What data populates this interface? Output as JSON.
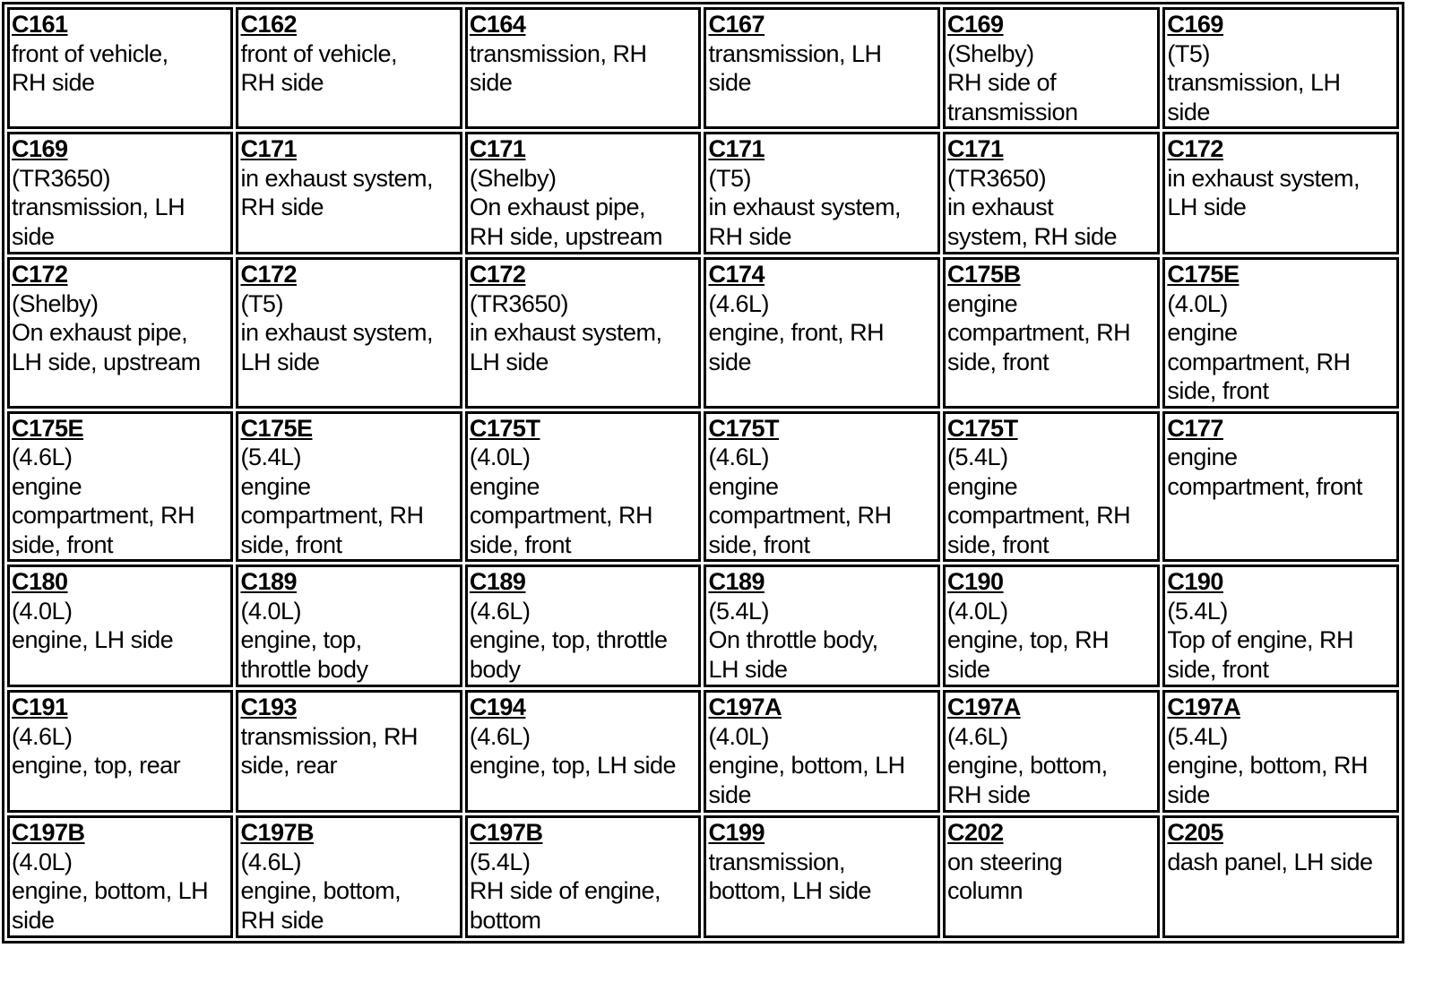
{
  "rows": [
    [
      {
        "code": "C161",
        "lines": [
          "front of vehicle,",
          "RH side"
        ]
      },
      {
        "code": "C162",
        "lines": [
          "front of vehicle,",
          "RH side"
        ]
      },
      {
        "code": "C164",
        "lines": [
          "transmission, RH",
          "side"
        ]
      },
      {
        "code": "C167",
        "lines": [
          "transmission, LH",
          "side"
        ]
      },
      {
        "code": "C169",
        "lines": [
          "(Shelby)",
          "RH side of",
          "transmission"
        ]
      },
      {
        "code": "C169",
        "lines": [
          "(T5)",
          "transmission, LH",
          "side"
        ]
      }
    ],
    [
      {
        "code": "C169",
        "lines": [
          "(TR3650)",
          "transmission, LH",
          "side"
        ]
      },
      {
        "code": "C171",
        "lines": [
          "in exhaust system,",
          "RH side"
        ]
      },
      {
        "code": "C171",
        "lines": [
          "(Shelby)",
          "On exhaust pipe,",
          "RH side, upstream"
        ]
      },
      {
        "code": "C171",
        "lines": [
          "(T5)",
          "in exhaust system,",
          "RH side"
        ]
      },
      {
        "code": "C171",
        "lines": [
          "(TR3650)",
          "in exhaust",
          "system, RH side"
        ]
      },
      {
        "code": "C172",
        "lines": [
          "in exhaust system,",
          "LH side"
        ]
      }
    ],
    [
      {
        "code": "C172",
        "lines": [
          "(Shelby)",
          "On exhaust pipe,",
          "LH side, upstream"
        ]
      },
      {
        "code": "C172",
        "lines": [
          "(T5)",
          "in exhaust system,",
          "LH side"
        ]
      },
      {
        "code": "C172",
        "lines": [
          "(TR3650)",
          "in exhaust system,",
          "LH side"
        ]
      },
      {
        "code": "C174",
        "lines": [
          "(4.6L)",
          "engine, front, RH",
          "side"
        ]
      },
      {
        "code": "C175B",
        "lines": [
          "engine",
          "compartment, RH",
          "side, front"
        ]
      },
      {
        "code": "C175E",
        "lines": [
          "(4.0L)",
          "engine",
          "compartment, RH",
          "side, front"
        ]
      }
    ],
    [
      {
        "code": "C175E",
        "lines": [
          "(4.6L)",
          "engine",
          "compartment, RH",
          "side, front"
        ]
      },
      {
        "code": "C175E",
        "lines": [
          "(5.4L)",
          "engine",
          "compartment, RH",
          "side, front"
        ]
      },
      {
        "code": "C175T",
        "lines": [
          "(4.0L)",
          "engine",
          "compartment, RH",
          "side, front"
        ]
      },
      {
        "code": "C175T",
        "lines": [
          "(4.6L)",
          "engine",
          "compartment, RH",
          "side, front"
        ]
      },
      {
        "code": "C175T",
        "lines": [
          "(5.4L)",
          "engine",
          "compartment, RH",
          "side, front"
        ]
      },
      {
        "code": "C177",
        "lines": [
          "engine",
          "compartment, front"
        ]
      }
    ],
    [
      {
        "code": "C180",
        "lines": [
          "(4.0L)",
          "engine, LH side"
        ]
      },
      {
        "code": "C189",
        "lines": [
          "(4.0L)",
          "engine, top,",
          "throttle body"
        ]
      },
      {
        "code": "C189",
        "lines": [
          "(4.6L)",
          "engine, top, throttle",
          "body"
        ]
      },
      {
        "code": "C189",
        "lines": [
          "(5.4L)",
          "On throttle body,",
          "LH side"
        ]
      },
      {
        "code": "C190",
        "lines": [
          "(4.0L)",
          "engine, top, RH",
          "side"
        ]
      },
      {
        "code": "C190",
        "lines": [
          "(5.4L)",
          "Top of engine, RH",
          "side, front"
        ]
      }
    ],
    [
      {
        "code": "C191",
        "lines": [
          "(4.6L)",
          "engine, top, rear"
        ]
      },
      {
        "code": "C193",
        "lines": [
          "transmission, RH",
          "side, rear"
        ]
      },
      {
        "code": "C194",
        "lines": [
          "(4.6L)",
          "engine, top, LH side"
        ]
      },
      {
        "code": "C197A",
        "lines": [
          "(4.0L)",
          "engine, bottom, LH",
          "side"
        ]
      },
      {
        "code": "C197A",
        "lines": [
          "(4.6L)",
          "engine, bottom,",
          "RH side"
        ]
      },
      {
        "code": "C197A",
        "lines": [
          "(5.4L)",
          "engine, bottom, RH",
          "side"
        ]
      }
    ],
    [
      {
        "code": "C197B",
        "lines": [
          "(4.0L)",
          "engine, bottom, LH",
          "side"
        ]
      },
      {
        "code": "C197B",
        "lines": [
          "(4.6L)",
          "engine, bottom,",
          "RH side"
        ]
      },
      {
        "code": "C197B",
        "lines": [
          "(5.4L)",
          "RH side of engine,",
          "bottom"
        ]
      },
      {
        "code": "C199",
        "lines": [
          "transmission,",
          "bottom, LH side"
        ]
      },
      {
        "code": "C202",
        "lines": [
          "on steering",
          "column"
        ]
      },
      {
        "code": "C205",
        "lines": [
          "dash panel, LH side"
        ]
      }
    ]
  ]
}
